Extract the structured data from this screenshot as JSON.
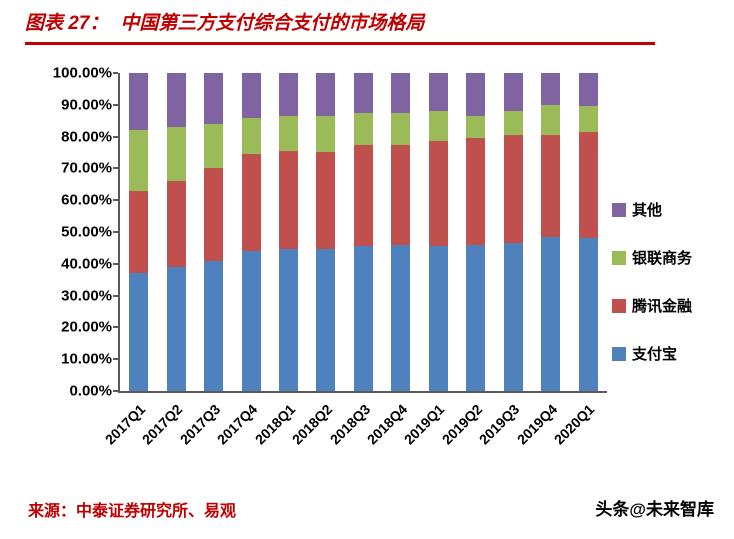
{
  "header": {
    "label": "图表 27：",
    "title": "中国第三方支付综合支付的市场格局"
  },
  "chart_data": {
    "type": "bar",
    "subtype": "stacked-100-percent",
    "title": "图表 27：中国第三方支付综合支付的市场格局",
    "xlabel": "",
    "ylabel": "",
    "ylim": [
      0,
      100
    ],
    "unit": "%",
    "grid": false,
    "categories": [
      "2017Q1",
      "2017Q2",
      "2017Q3",
      "2017Q4",
      "2018Q1",
      "2018Q2",
      "2018Q3",
      "2018Q4",
      "2019Q1",
      "2019Q2",
      "2019Q3",
      "2019Q4",
      "2020Q1"
    ],
    "series": [
      {
        "name": "支付宝",
        "color": "#4F81BD",
        "values": [
          37,
          39,
          41,
          44,
          44.5,
          44.5,
          45.5,
          46,
          45.5,
          46,
          46.5,
          48.5,
          48
        ]
      },
      {
        "name": "腾讯金融",
        "color": "#C0504D",
        "values": [
          26,
          27,
          29,
          30.5,
          31,
          30.5,
          32,
          31.5,
          33,
          33.5,
          34,
          32,
          33.5
        ]
      },
      {
        "name": "银联商务",
        "color": "#9BBB59",
        "values": [
          19,
          17,
          14,
          11.5,
          11,
          11.5,
          10,
          10,
          9.5,
          7,
          7.5,
          9.5,
          8
        ]
      },
      {
        "name": "其他",
        "color": "#8064A2",
        "values": [
          18,
          17,
          16,
          14,
          13.5,
          13.5,
          12.5,
          12.5,
          12,
          13.5,
          12,
          10,
          10.5
        ]
      }
    ],
    "yticks": [
      "100.00%",
      "90.00%",
      "80.00%",
      "70.00%",
      "60.00%",
      "50.00%",
      "40.00%",
      "30.00%",
      "20.00%",
      "10.00%",
      "0.00%"
    ],
    "legend": {
      "position": "right",
      "order": [
        "其他",
        "银联商务",
        "腾讯金融",
        "支付宝"
      ]
    }
  },
  "footer": {
    "source": "来源：中泰证券研究所、易观",
    "watermark": "头条@未来智库"
  }
}
